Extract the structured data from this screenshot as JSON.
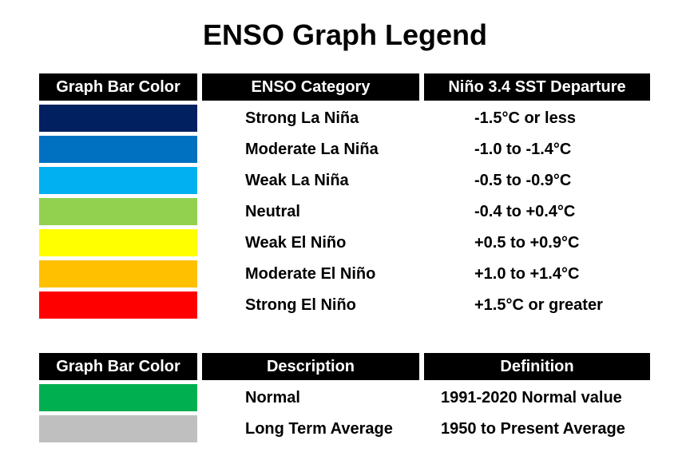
{
  "title": "ENSO Graph Legend",
  "enso_table": {
    "headers": {
      "color": "Graph Bar Color",
      "category": "ENSO Category",
      "departure": "Niño 3.4 SST Departure"
    },
    "rows": [
      {
        "color": "#002060",
        "category": "Strong La Niña",
        "departure": "-1.5°C or less"
      },
      {
        "color": "#0070C0",
        "category": "Moderate La Niña",
        "departure": "-1.0 to -1.4°C"
      },
      {
        "color": "#00B0F0",
        "category": "Weak La Niña",
        "departure": "-0.5 to -0.9°C"
      },
      {
        "color": "#92D050",
        "category": "Neutral",
        "departure": "-0.4 to +0.4°C"
      },
      {
        "color": "#FFFF00",
        "category": "Weak El Niño",
        "departure": "+0.5 to +0.9°C"
      },
      {
        "color": "#FFC000",
        "category": "Moderate El Niño",
        "departure": "+1.0 to +1.4°C"
      },
      {
        "color": "#FF0000",
        "category": "Strong El Niño",
        "departure": "+1.5°C or greater"
      }
    ]
  },
  "normal_table": {
    "headers": {
      "color": "Graph Bar Color",
      "description": "Description",
      "definition": "Definition"
    },
    "rows": [
      {
        "color": "#00B050",
        "description": "Normal",
        "definition": "1991-2020 Normal value"
      },
      {
        "color": "#BFBFBF",
        "description": "Long Term Average",
        "definition": "1950 to Present Average"
      }
    ]
  }
}
